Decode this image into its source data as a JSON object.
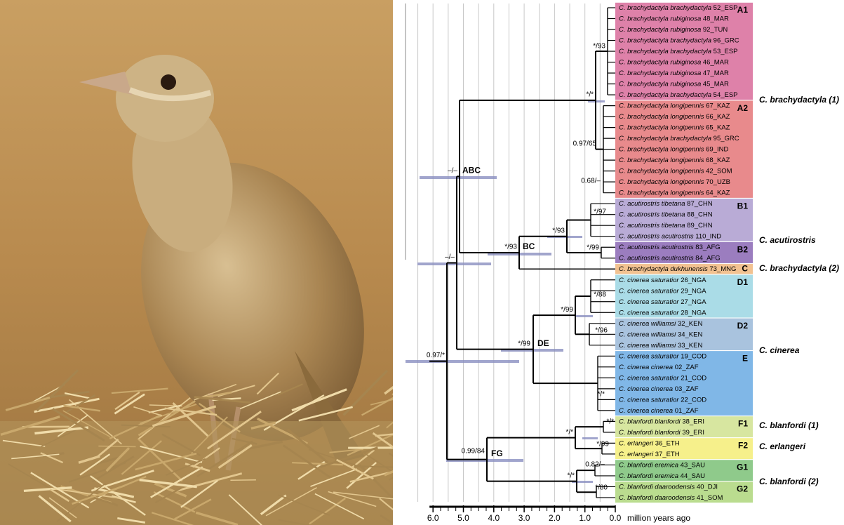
{
  "taxa": [
    {
      "name": "C. brachydactyla brachydactyla",
      "code": "52_ESP"
    },
    {
      "name": "C. brachydactyla rubiginosa",
      "code": "48_MAR"
    },
    {
      "name": "C. brachydactyla rubiginosa",
      "code": "92_TUN"
    },
    {
      "name": "C. brachydactyla brachydactyla",
      "code": "96_GRC"
    },
    {
      "name": "C. brachydactyla brachydactyla",
      "code": "53_ESP"
    },
    {
      "name": "C. brachydactyla rubiginosa",
      "code": "46_MAR"
    },
    {
      "name": "C. brachydactyla rubiginosa",
      "code": "47_MAR"
    },
    {
      "name": "C. brachydactyla rubiginosa",
      "code": "45_MAR"
    },
    {
      "name": "C. brachydactyla brachydactyla",
      "code": "54_ESP"
    },
    {
      "name": "C. brachydactyla longipennis",
      "code": "67_KAZ"
    },
    {
      "name": "C. brachydactyla longipennis",
      "code": "66_KAZ"
    },
    {
      "name": "C. brachydactyla longipennis",
      "code": "65_KAZ"
    },
    {
      "name": "C. brachydactyla brachydactyla",
      "code": "95_GRC"
    },
    {
      "name": "C. brachydactyla longipennis",
      "code": "69_IND"
    },
    {
      "name": "C. brachydactyla longipennis",
      "code": "68_KAZ"
    },
    {
      "name": "C. brachydactyla longipennis",
      "code": "42_SOM"
    },
    {
      "name": "C. brachydactyla longipennis",
      "code": "70_UZB"
    },
    {
      "name": "C. brachydactyla longipennis",
      "code": "64_KAZ"
    },
    {
      "name": "C. acutirostris tibetana",
      "code": "87_CHN"
    },
    {
      "name": "C. acutirostris tibetana",
      "code": "88_CHN"
    },
    {
      "name": "C. acutirostris tibetana",
      "code": "89_CHN"
    },
    {
      "name": "C. acutirostris acutirostris",
      "code": "110_IND"
    },
    {
      "name": "C. acutirostris acutirostris",
      "code": "83_AFG"
    },
    {
      "name": "C. acutirostris acutirostris",
      "code": "84_AFG"
    },
    {
      "name": "C. brachydactyla dukhunensis",
      "code": "73_MNG"
    },
    {
      "name": "C. cinerea saturatior",
      "code": "26_NGA"
    },
    {
      "name": "C. cinerea saturatior",
      "code": "29_NGA"
    },
    {
      "name": "C. cinerea saturatior",
      "code": "27_NGA"
    },
    {
      "name": "C. cinerea saturatior",
      "code": "28_NGA"
    },
    {
      "name": "C. cinerea williamsi",
      "code": "32_KEN"
    },
    {
      "name": "C. cinerea williamsi",
      "code": "34_KEN"
    },
    {
      "name": "C. cinerea williamsi",
      "code": "33_KEN"
    },
    {
      "name": "C. cinerea saturatior",
      "code": "19_COD"
    },
    {
      "name": "C. cinerea cinerea",
      "code": "02_ZAF"
    },
    {
      "name": "C. cinerea saturatior",
      "code": "21_COD"
    },
    {
      "name": "C. cinerea cinerea",
      "code": "03_ZAF"
    },
    {
      "name": "C. cinerea saturatior",
      "code": "22_COD"
    },
    {
      "name": "C. cinerea cinerea",
      "code": "01_ZAF"
    },
    {
      "name": "C. blanfordi blanfordi",
      "code": "38_ERI"
    },
    {
      "name": "C. blanfordi blanfordi",
      "code": "39_ERI"
    },
    {
      "name": "C. erlangeri",
      "code": "36_ETH"
    },
    {
      "name": "C. erlangeri",
      "code": "37_ETH"
    },
    {
      "name": "C. blanfordi eremica",
      "code": "43_SAU"
    },
    {
      "name": "C. blanfordi eremica",
      "code": "44_SAU"
    },
    {
      "name": "C. blanfordi daaroodensis",
      "code": "40_DJI"
    },
    {
      "name": "C. blanfordi daaroodensis",
      "code": "41_SOM"
    }
  ],
  "clades": [
    "A1",
    "A2",
    "B1",
    "B2",
    "C",
    "D1",
    "D2",
    "E",
    "F1",
    "F2",
    "G1",
    "G2"
  ],
  "species_labels": [
    "C. brachydactyla (1)",
    "C. acutirostris",
    "C. brachydactyla (2)",
    "C. cinerea",
    "C. blanfordi (1)",
    "C. erlangeri",
    "C. blanfordi (2)"
  ],
  "node_labels": [
    "ABC",
    "BC",
    "DE",
    "FG"
  ],
  "support_values": [
    "*/93",
    "*/*",
    "0.97/65",
    "0.68/–",
    "–/–",
    "*/93",
    "*/93",
    "*/97",
    "*/99",
    "–/–",
    "0.97/*",
    "*/99",
    "*/99",
    "*/88",
    "*/96",
    "*/*",
    "0.99/84",
    "*/*",
    "*/*",
    "*/99",
    "0.82/–",
    "*/*",
    "*/80"
  ],
  "axis": {
    "ticks": [
      "6.0",
      "5.0",
      "4.0",
      "3.0",
      "2.0",
      "1.0",
      "0.0"
    ],
    "label": "million years ago"
  }
}
